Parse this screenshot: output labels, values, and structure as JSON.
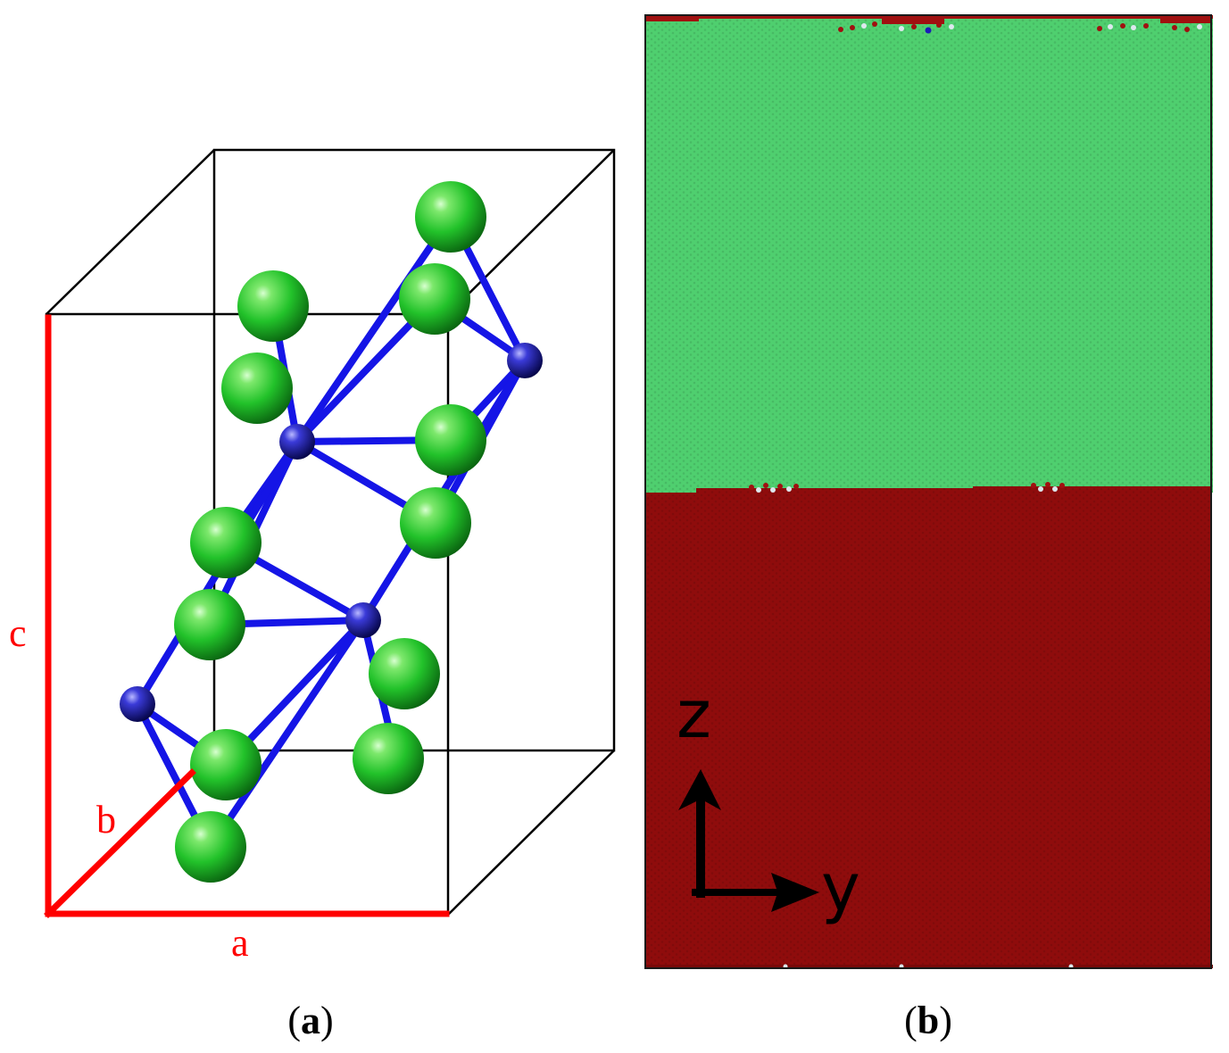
{
  "panels": [
    {
      "label_open": "(",
      "label_letter": "a",
      "label_close": ")",
      "axes": {
        "a": "a",
        "b": "b",
        "c": "c",
        "color": "#ff0000"
      }
    },
    {
      "label_open": "(",
      "label_letter": "b",
      "label_close": ")",
      "coordinate_axes": {
        "vertical": "z",
        "horizontal": "y"
      }
    }
  ],
  "colors": {
    "large_atom": "#22c22a",
    "small_atom": "#1a1ab8",
    "bond": "#1515e6",
    "cell_edge": "#000000",
    "upper_region": "#4fcf6f",
    "lower_region": "#8f0c0c",
    "defect_red": "#a01010",
    "defect_white": "#dde8ee"
  },
  "icons": [
    "arrow-up-icon",
    "arrow-right-icon"
  ]
}
